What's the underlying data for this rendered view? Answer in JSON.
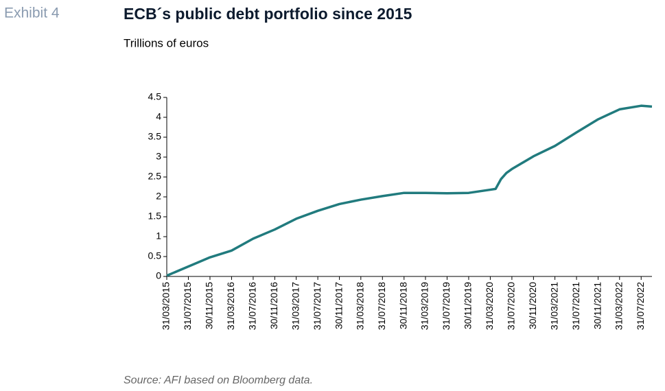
{
  "chart_data": {
    "type": "line",
    "exhibit": "Exhibit 4",
    "title": "ECB´s public debt portfolio since 2015",
    "subtitle": "Trillions of euros",
    "source": "Source: AFI based on Bloomberg data.",
    "color": "#217b7e",
    "x": [
      "31/03/2015",
      "31/07/2015",
      "30/11/2015",
      "31/03/2016",
      "31/07/2016",
      "30/11/2016",
      "31/03/2017",
      "31/07/2017",
      "30/11/2017",
      "31/03/2018",
      "31/07/2018",
      "30/11/2018",
      "31/03/2019",
      "31/07/2019",
      "30/11/2019",
      "31/03/2020",
      "30/04/2020",
      "31/05/2020",
      "30/06/2020",
      "31/07/2020",
      "30/11/2020",
      "31/03/2021",
      "31/07/2021",
      "30/11/2021",
      "31/03/2022",
      "31/07/2022",
      "30/09/2022"
    ],
    "values": [
      0.02,
      0.25,
      0.48,
      0.65,
      0.95,
      1.18,
      1.45,
      1.65,
      1.82,
      1.93,
      2.02,
      2.1,
      2.1,
      2.09,
      2.1,
      2.18,
      2.2,
      2.45,
      2.6,
      2.7,
      3.02,
      3.28,
      3.62,
      3.95,
      4.2,
      4.29,
      4.27
    ],
    "xlim": [
      "31/03/2015",
      "30/09/2022"
    ],
    "xticks": [
      "31/03/2015",
      "31/07/2015",
      "30/11/2015",
      "31/03/2016",
      "31/07/2016",
      "30/11/2016",
      "31/03/2017",
      "31/07/2017",
      "30/11/2017",
      "31/03/2018",
      "31/07/2018",
      "30/11/2018",
      "31/03/2019",
      "31/07/2019",
      "30/11/2019",
      "31/03/2020",
      "31/07/2020",
      "30/11/2020",
      "31/03/2021",
      "31/07/2021",
      "30/11/2021",
      "31/03/2022",
      "31/07/2022"
    ],
    "ylim": [
      0,
      4.5
    ],
    "yticks": [
      0,
      0.5,
      1,
      1.5,
      2,
      2.5,
      3,
      3.5,
      4,
      4.5
    ]
  }
}
